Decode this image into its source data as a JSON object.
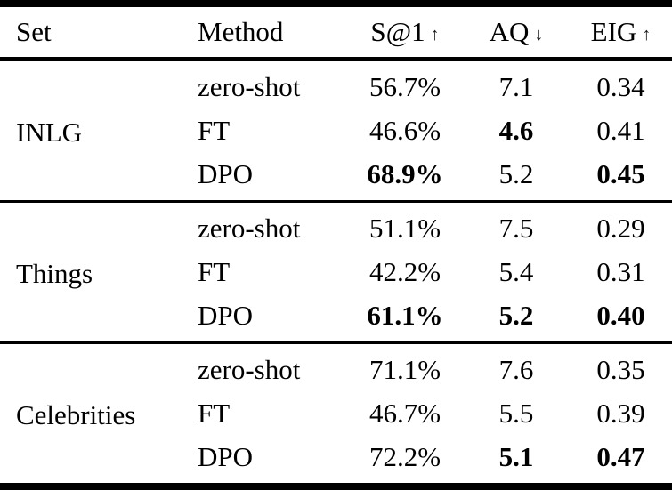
{
  "page": {
    "background_color": "#ffffff",
    "text_color": "#000000",
    "rule_color": "#000000"
  },
  "table": {
    "columns": [
      {
        "label": "Set",
        "arrow": ""
      },
      {
        "label": "Method",
        "arrow": ""
      },
      {
        "label": "S@1",
        "arrow": "↑"
      },
      {
        "label": "AQ",
        "arrow": "↓"
      },
      {
        "label": "EIG",
        "arrow": "↑"
      }
    ],
    "groups": [
      {
        "set": "INLG",
        "rows": [
          {
            "method": "zero-shot",
            "s1": {
              "value": "56.7%",
              "bold": false
            },
            "aq": {
              "value": "7.1",
              "bold": false
            },
            "eig": {
              "value": "0.34",
              "bold": false
            }
          },
          {
            "method": "FT",
            "s1": {
              "value": "46.6%",
              "bold": false
            },
            "aq": {
              "value": "4.6",
              "bold": true
            },
            "eig": {
              "value": "0.41",
              "bold": false
            }
          },
          {
            "method": "DPO",
            "s1": {
              "value": "68.9%",
              "bold": true
            },
            "aq": {
              "value": "5.2",
              "bold": false
            },
            "eig": {
              "value": "0.45",
              "bold": true
            }
          }
        ]
      },
      {
        "set": "Things",
        "rows": [
          {
            "method": "zero-shot",
            "s1": {
              "value": "51.1%",
              "bold": false
            },
            "aq": {
              "value": "7.5",
              "bold": false
            },
            "eig": {
              "value": "0.29",
              "bold": false
            }
          },
          {
            "method": "FT",
            "s1": {
              "value": "42.2%",
              "bold": false
            },
            "aq": {
              "value": "5.4",
              "bold": false
            },
            "eig": {
              "value": "0.31",
              "bold": false
            }
          },
          {
            "method": "DPO",
            "s1": {
              "value": "61.1%",
              "bold": true
            },
            "aq": {
              "value": "5.2",
              "bold": true
            },
            "eig": {
              "value": "0.40",
              "bold": true
            }
          }
        ]
      },
      {
        "set": "Celebrities",
        "rows": [
          {
            "method": "zero-shot",
            "s1": {
              "value": "71.1%",
              "bold": false
            },
            "aq": {
              "value": "7.6",
              "bold": false
            },
            "eig": {
              "value": "0.35",
              "bold": false
            }
          },
          {
            "method": "FT",
            "s1": {
              "value": "46.7%",
              "bold": false
            },
            "aq": {
              "value": "5.5",
              "bold": false
            },
            "eig": {
              "value": "0.39",
              "bold": false
            }
          },
          {
            "method": "DPO",
            "s1": {
              "value": "72.2%",
              "bold": false
            },
            "aq": {
              "value": "5.1",
              "bold": true
            },
            "eig": {
              "value": "0.47",
              "bold": true
            }
          }
        ]
      }
    ]
  }
}
